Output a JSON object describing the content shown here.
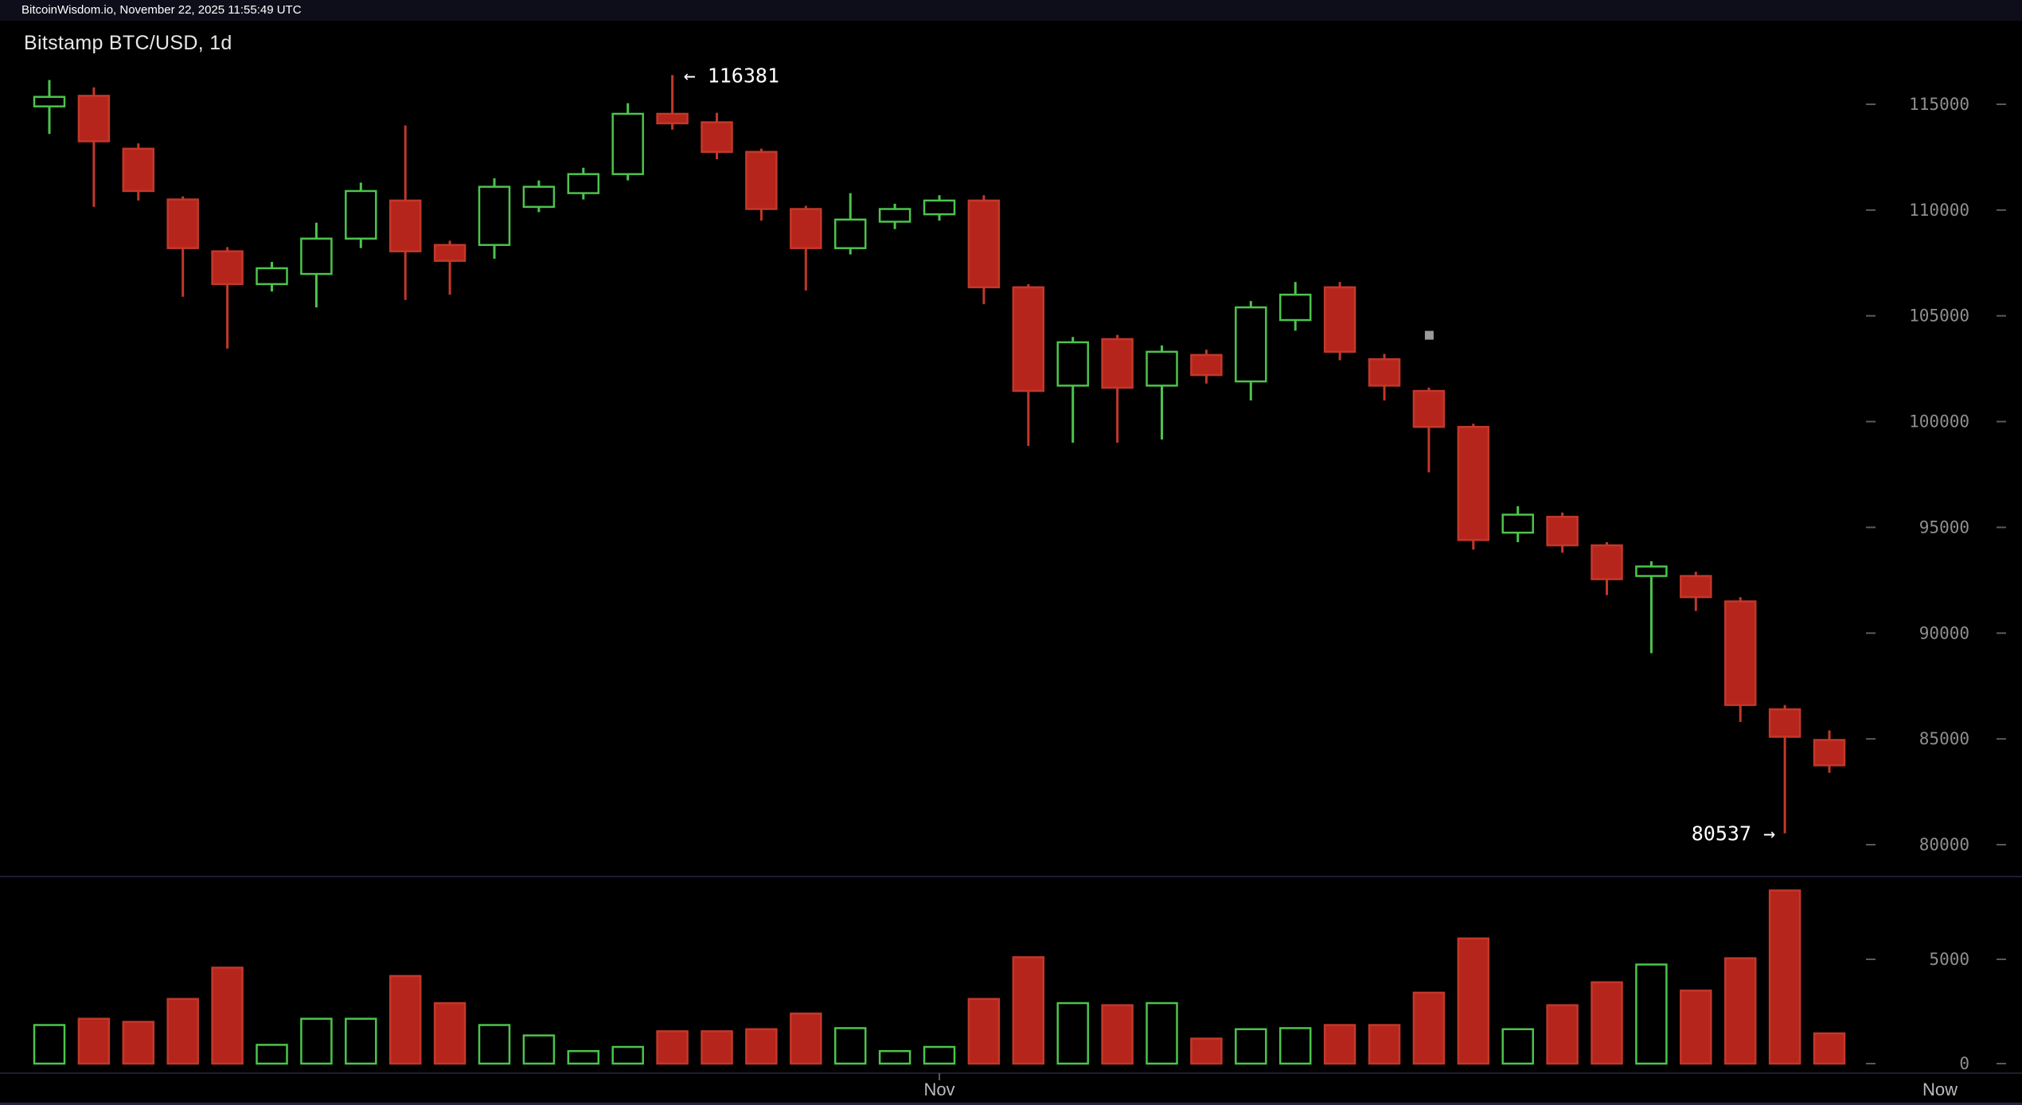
{
  "top_bar": {
    "text": "BitcoinWisdom.io, November 22, 2025 11:55:49 UTC"
  },
  "chart_header": {
    "title": "Bitstamp BTC/USD, 1d"
  },
  "colors": {
    "up": "#4cc44c",
    "down": "#b5251c",
    "down_stroke": "#c2382a",
    "background": "#000000",
    "axis_text": "#8e8e8e",
    "tick": "#5a5a5a",
    "annotation": "#ffffff",
    "pane_border": "#1d1d33",
    "topbar_bg": "#0e0e1a",
    "cursor_dot": "#9a9a9a",
    "bottom_border": "#232347",
    "x_label": "#b9b9c0"
  },
  "chart_data": {
    "type": "candlestick",
    "exchange": "Bitstamp",
    "pair": "BTC/USD",
    "interval": "1d",
    "title": "Bitstamp BTC/USD, 1d",
    "price_axis": {
      "ticks": [
        115000,
        110000,
        105000,
        100000,
        95000,
        90000,
        85000,
        80000
      ],
      "range": [
        79500,
        116500
      ]
    },
    "volume_axis": {
      "ticks": [
        5000,
        0
      ],
      "range": [
        0,
        8700
      ]
    },
    "x_axis_labels": [
      {
        "text": "Nov",
        "candle_index": 20
      },
      {
        "text": "Now",
        "position": "right"
      }
    ],
    "high_label": {
      "display": "← 116381",
      "value": 116381,
      "candle_index": 14
    },
    "low_label": {
      "display": "80537 →",
      "value": 80537,
      "candle_index": 39
    },
    "cursor_dot": {
      "candle_index": 31,
      "price": 104100
    },
    "candles": [
      [
        114900,
        116150,
        113600,
        115350
      ],
      [
        115400,
        115800,
        110150,
        113250
      ],
      [
        112900,
        113150,
        110450,
        110900
      ],
      [
        110500,
        110650,
        105900,
        108200
      ],
      [
        108050,
        108250,
        103450,
        106500
      ],
      [
        106500,
        107550,
        106150,
        107250
      ],
      [
        106980,
        109400,
        105400,
        108650
      ],
      [
        108650,
        111300,
        108200,
        110900
      ],
      [
        110450,
        114000,
        105750,
        108050
      ],
      [
        108350,
        108550,
        106000,
        107600
      ],
      [
        108350,
        111500,
        107700,
        111100
      ],
      [
        110150,
        111400,
        109900,
        111100
      ],
      [
        110800,
        112000,
        110500,
        111700
      ],
      [
        111700,
        115050,
        111400,
        114550
      ],
      [
        114550,
        116381,
        113800,
        114100
      ],
      [
        114150,
        114600,
        112400,
        112750
      ],
      [
        112750,
        112900,
        109500,
        110050
      ],
      [
        110050,
        110200,
        106200,
        108200
      ],
      [
        108200,
        110800,
        107900,
        109550
      ],
      [
        109450,
        110300,
        109100,
        110050
      ],
      [
        109800,
        110700,
        109500,
        110450
      ],
      [
        110450,
        110700,
        105550,
        106350
      ],
      [
        106350,
        106500,
        98850,
        101450
      ],
      [
        101700,
        104000,
        99000,
        103750
      ],
      [
        103900,
        104100,
        99000,
        101600
      ],
      [
        101700,
        103600,
        99150,
        103300
      ],
      [
        103150,
        103400,
        101800,
        102200
      ],
      [
        101900,
        105700,
        101000,
        105400
      ],
      [
        104800,
        106600,
        104300,
        106000
      ],
      [
        106350,
        106600,
        102900,
        103300
      ],
      [
        102950,
        103200,
        101000,
        101700
      ],
      [
        101450,
        101600,
        97600,
        99750
      ],
      [
        99750,
        99900,
        93950,
        94400
      ],
      [
        94750,
        96000,
        94300,
        95600
      ],
      [
        95500,
        95700,
        93800,
        94150
      ],
      [
        94150,
        94300,
        91800,
        92550
      ],
      [
        92700,
        93400,
        89050,
        93150
      ],
      [
        92700,
        92900,
        91050,
        91700
      ],
      [
        91500,
        91700,
        85800,
        86600
      ],
      [
        86400,
        86600,
        80537,
        85100
      ],
      [
        84950,
        85400,
        83400,
        83750
      ]
    ],
    "volumes": [
      1850,
      2150,
      2000,
      3100,
      4600,
      900,
      2150,
      2150,
      4200,
      2900,
      1850,
      1350,
      600,
      800,
      1550,
      1550,
      1650,
      2400,
      1700,
      600,
      800,
      3100,
      5100,
      2900,
      2800,
      2900,
      1200,
      1650,
      1700,
      1850,
      1850,
      3400,
      6000,
      1650,
      2800,
      3900,
      4750,
      3500,
      5050,
      8300,
      1450
    ]
  }
}
